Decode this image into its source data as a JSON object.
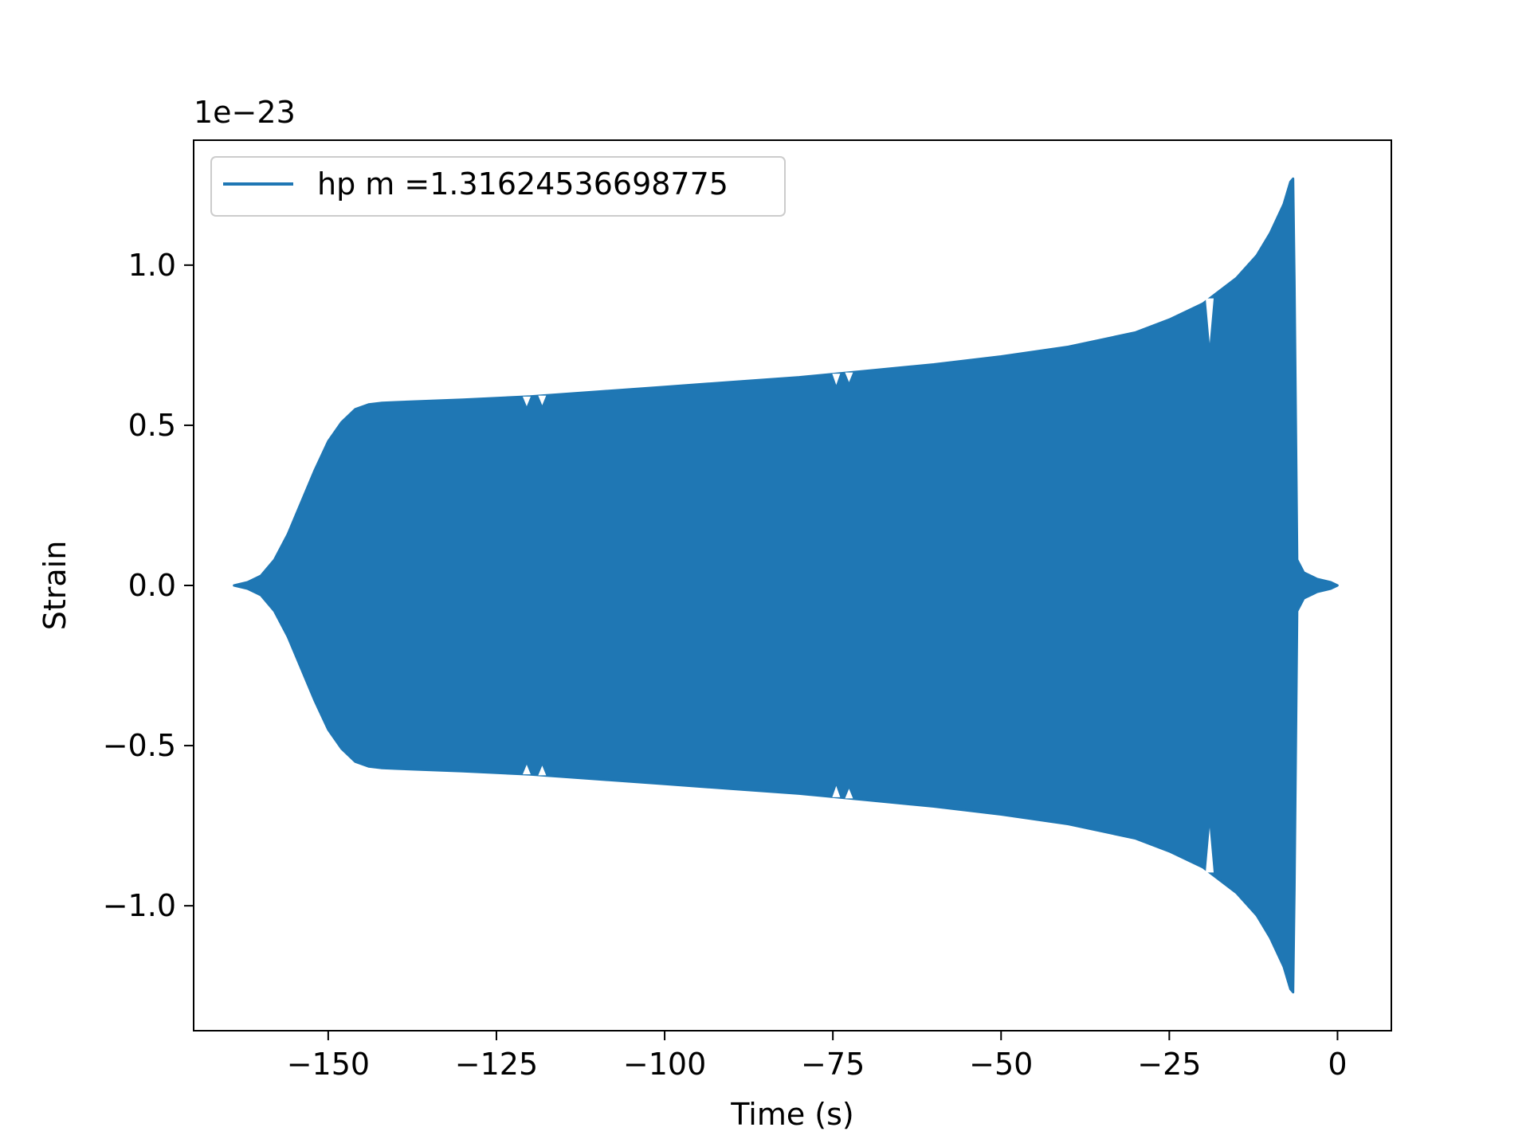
{
  "chart_data": {
    "type": "line",
    "title": "",
    "xlabel": "Time (s)",
    "ylabel": "Strain",
    "offset_text": "1e−23",
    "xlim": [
      -170,
      8
    ],
    "ylim": [
      -1.39,
      1.39
    ],
    "xticks": [
      -150,
      -125,
      -100,
      -75,
      -50,
      -25,
      0
    ],
    "xtick_labels": [
      "−150",
      "−125",
      "−100",
      "−75",
      "−50",
      "−25",
      "0"
    ],
    "yticks": [
      -1.0,
      -0.5,
      0.0,
      0.5,
      1.0
    ],
    "ytick_labels": [
      "−1.0",
      "−0.5",
      "0.0",
      "0.5",
      "1.0"
    ],
    "grid": false,
    "legend_position": "top-left",
    "series": [
      {
        "name": "hp m =1.31624536698775",
        "color": "#1f77b4",
        "envelope_upper": {
          "x": [
            -164.0,
            -162.0,
            -160.0,
            -158.0,
            -156.0,
            -154.0,
            -152.0,
            -150.0,
            -148.0,
            -146.0,
            -144.0,
            -142.0,
            -140.0,
            -130.0,
            -120.0,
            -110.0,
            -100.0,
            -90.0,
            -80.0,
            -70.0,
            -60.0,
            -50.0,
            -40.0,
            -30.0,
            -25.0,
            -20.0,
            -15.0,
            -12.0,
            -10.0,
            -8.0,
            -7.0,
            -6.6,
            -6.4,
            -6.0,
            -5.0,
            -3.0,
            -1.0,
            0.0
          ],
          "y": [
            0.0,
            0.01,
            0.03,
            0.08,
            0.16,
            0.26,
            0.36,
            0.45,
            0.51,
            0.55,
            0.565,
            0.57,
            0.572,
            0.58,
            0.59,
            0.605,
            0.62,
            0.635,
            0.65,
            0.67,
            0.69,
            0.715,
            0.745,
            0.79,
            0.83,
            0.88,
            0.96,
            1.03,
            1.1,
            1.19,
            1.26,
            1.27,
            0.95,
            0.08,
            0.04,
            0.02,
            0.01,
            0.0
          ]
        },
        "envelope_lower": {
          "x": [
            -164.0,
            -162.0,
            -160.0,
            -158.0,
            -156.0,
            -154.0,
            -152.0,
            -150.0,
            -148.0,
            -146.0,
            -144.0,
            -142.0,
            -140.0,
            -130.0,
            -120.0,
            -110.0,
            -100.0,
            -90.0,
            -80.0,
            -70.0,
            -60.0,
            -50.0,
            -40.0,
            -30.0,
            -25.0,
            -20.0,
            -15.0,
            -12.0,
            -10.0,
            -8.0,
            -7.0,
            -6.6,
            -6.4,
            -6.0,
            -5.0,
            -3.0,
            -1.0,
            0.0
          ],
          "y": [
            0.0,
            -0.01,
            -0.03,
            -0.08,
            -0.16,
            -0.26,
            -0.36,
            -0.45,
            -0.51,
            -0.55,
            -0.565,
            -0.57,
            -0.572,
            -0.58,
            -0.59,
            -0.605,
            -0.62,
            -0.635,
            -0.65,
            -0.67,
            -0.69,
            -0.715,
            -0.745,
            -0.79,
            -0.83,
            -0.88,
            -0.96,
            -1.03,
            -1.1,
            -1.19,
            -1.26,
            -1.27,
            -0.95,
            -0.08,
            -0.04,
            -0.02,
            -0.01,
            0.0
          ]
        },
        "notches": [
          {
            "x": -120.5,
            "depth": 0.03
          },
          {
            "x": -118.2,
            "depth": 0.03
          },
          {
            "x": -74.5,
            "depth": 0.035
          },
          {
            "x": -72.6,
            "depth": 0.03
          },
          {
            "x": -19.0,
            "depth": 0.14
          }
        ]
      }
    ]
  }
}
